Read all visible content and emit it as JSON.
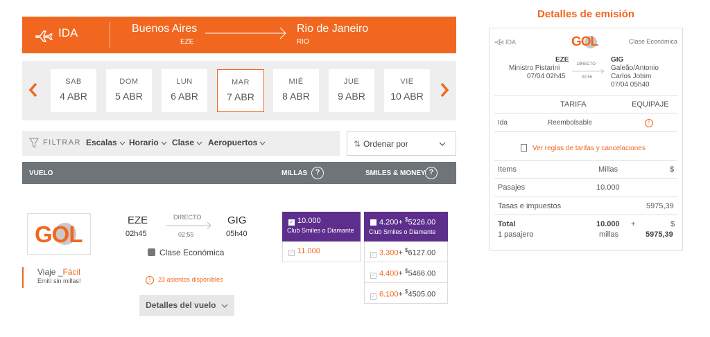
{
  "route": {
    "direction_label": "IDA",
    "origin_city": "Buenos Aires",
    "origin_code": "EZE",
    "destination_city": "Rio de Janeiro",
    "destination_code": "RIO"
  },
  "dates": [
    {
      "dow": "SAB",
      "day": "4 ABR"
    },
    {
      "dow": "DOM",
      "day": "5 ABR"
    },
    {
      "dow": "LUN",
      "day": "6 ABR"
    },
    {
      "dow": "MAR",
      "day": "7 ABR",
      "selected": true
    },
    {
      "dow": "MIÉ",
      "day": "8 ABR"
    },
    {
      "dow": "JUE",
      "day": "9 ABR"
    },
    {
      "dow": "VIE",
      "day": "10 ABR"
    }
  ],
  "filters": {
    "label": "FILTRAR",
    "options": [
      "Escalas",
      "Horario",
      "Clase",
      "Aeropuertos"
    ]
  },
  "sort": {
    "label": "Ordenar por"
  },
  "table_header": {
    "flight": "VUELO",
    "miles": "MILLAS",
    "smiles_money": "SMILES & MONEY",
    "help": "?"
  },
  "flight": {
    "airline": "GOL",
    "promo_prefix": "Viaje",
    "promo_highlight": "Fácil",
    "promo_sub": "Emití sin millas!",
    "origin_code": "EZE",
    "depart_time": "02h45",
    "stop_label": "DIRECTO",
    "duration": "02:55",
    "dest_code": "GIG",
    "arrive_time": "05h40",
    "cabin": "Clase Económica",
    "seats": "23 asientos disponibles",
    "details_button": "Detalles del vuelo",
    "miles_options": [
      {
        "miles": "10.000",
        "sub": "Club Smiles o Diamante",
        "selected": true
      },
      {
        "miles": "11.000",
        "sub": "",
        "selected": false
      }
    ],
    "smiles_money_options": [
      {
        "miles": "4.200",
        "money": "5226.00",
        "sub": "Club Smiles o Diamante",
        "selected": true
      },
      {
        "miles": "3.300",
        "money": "6127.00",
        "sub": "",
        "selected": false
      },
      {
        "miles": "4.400",
        "money": "5466.00",
        "sub": "",
        "selected": false
      },
      {
        "miles": "6.100",
        "money": "4505.00",
        "sub": "",
        "selected": false
      }
    ],
    "plus": "+",
    "currency_symbol": "$"
  },
  "summary": {
    "title": "Detalles de emisión",
    "direction": "IDA",
    "airline": "GOL",
    "cabin": "Clase Económica",
    "origin_code": "EZE",
    "origin_airport": "Ministro Pistarini",
    "origin_datetime": "07/04 02h45",
    "stop_label": "DIRECTO",
    "duration": "02:55",
    "dest_code": "GIG",
    "dest_airport_line1": "Galeão/Antonio",
    "dest_airport_line2": "Carlos Jobim",
    "dest_datetime": "07/04 05h40",
    "col_fare": "TARIFA",
    "col_baggage": "EQUIPAJE",
    "fare_row_label": "Ida",
    "fare_type": "Reembolsable",
    "rules_link": "Ver reglas de tarifas y cancelaciones",
    "items_header": "Items",
    "miles_header": "Millas",
    "money_header": "$",
    "row1_label": "Pasajes",
    "row1_miles": "10.000",
    "row2_label": "Tasas e impuestos",
    "row2_money": "5975,39",
    "total_label": "Total",
    "total_sub": "1 pasajero",
    "total_miles": "10.000",
    "total_miles_unit": "millas",
    "total_plus": "+",
    "total_currency": "$",
    "total_money": "5975,39"
  },
  "colors": {
    "accent": "#f2671f",
    "purple": "#5d2e8c",
    "header_gray": "#6e7478"
  },
  "icons": [
    "plane-icon",
    "arrow-right-icon",
    "chevron-left-icon",
    "chevron-right-icon",
    "filter-icon",
    "sort-icon",
    "chevron-down-icon",
    "question-icon",
    "warning-icon",
    "document-icon",
    "seat-icon"
  ]
}
